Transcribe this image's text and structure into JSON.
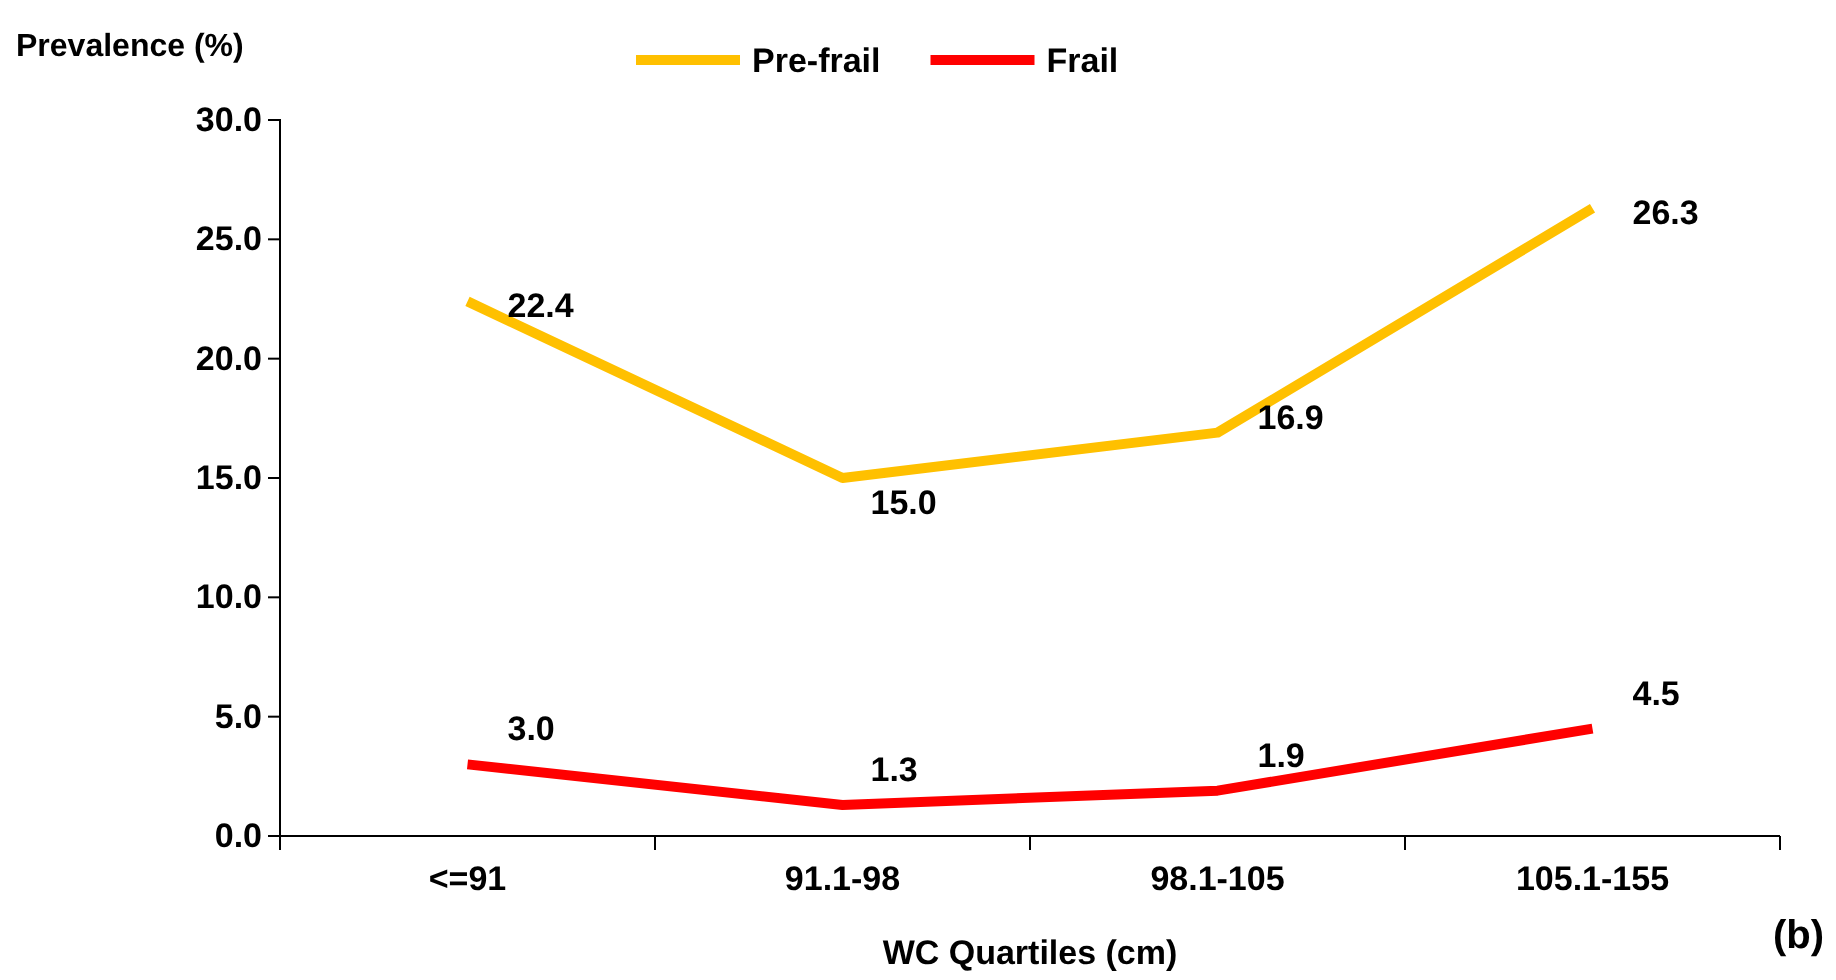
{
  "chart_data": {
    "type": "line",
    "ylabel": "Prevalence (%)",
    "xlabel": "WC Quartiles (cm)",
    "categories": [
      "<=91",
      "91.1-98",
      "98.1-105",
      "105.1-155"
    ],
    "series": [
      {
        "name": "Pre-frail",
        "color": "#ffc000",
        "values": [
          22.4,
          15.0,
          16.9,
          26.3
        ],
        "value_labels": [
          "22.4",
          "15.0",
          "16.9",
          "26.3"
        ]
      },
      {
        "name": "Frail",
        "color": "#ff0000",
        "values": [
          3.0,
          1.3,
          1.9,
          4.5
        ],
        "value_labels": [
          "3.0",
          "1.3",
          "1.9",
          "4.5"
        ]
      }
    ],
    "ylim": [
      0,
      30
    ],
    "yticks": [
      {
        "value": 0,
        "label": "0.0"
      },
      {
        "value": 5,
        "label": "5.0"
      },
      {
        "value": 10,
        "label": "10.0"
      },
      {
        "value": 15,
        "label": "15.0"
      },
      {
        "value": 20,
        "label": "20.0"
      },
      {
        "value": 25,
        "label": "25.0"
      },
      {
        "value": 30,
        "label": "30.0"
      }
    ],
    "grid": false,
    "legend": "top",
    "marker": "none",
    "line_style": "solid",
    "annotations": [
      "(b)"
    ]
  }
}
